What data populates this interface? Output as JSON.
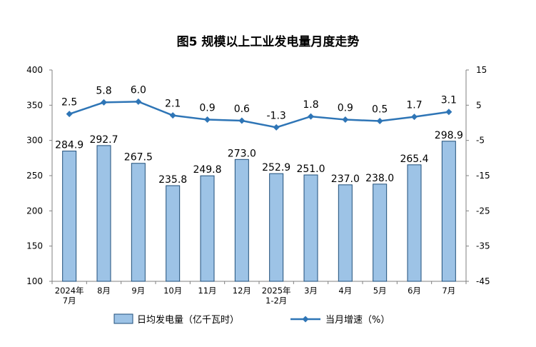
{
  "chart_data": {
    "type": "bar",
    "title": "图5  规模以上工业发电量月度走势",
    "categories": [
      "2024年\n7月",
      "8月",
      "9月",
      "10月",
      "11月",
      "12月",
      "2025年\n1-2月",
      "3月",
      "4月",
      "5月",
      "6月",
      "7月"
    ],
    "series": [
      {
        "name": "日均发电量（亿千瓦时）",
        "type": "bar",
        "axis": "left",
        "values": [
          284.9,
          292.7,
          267.5,
          235.8,
          249.8,
          273.0,
          252.9,
          251.0,
          237.0,
          238.0,
          265.4,
          298.9
        ],
        "labels": [
          "284.9",
          "292.7",
          "267.5",
          "235.8",
          "249.8",
          "273.0",
          "252.9",
          "251.0",
          "237.0",
          "238.0",
          "265.4",
          "298.9"
        ]
      },
      {
        "name": "当月增速（%）",
        "type": "line",
        "axis": "right",
        "values": [
          2.5,
          5.8,
          6.0,
          2.1,
          0.9,
          0.6,
          -1.3,
          1.8,
          0.9,
          0.5,
          1.7,
          3.1
        ],
        "labels": [
          "2.5",
          "5.8",
          "6.0",
          "2.1",
          "0.9",
          "0.6",
          "-1.3",
          "1.8",
          "0.9",
          "0.5",
          "1.7",
          "3.1"
        ]
      }
    ],
    "y_left": {
      "min": 100,
      "max": 400,
      "ticks": [
        100,
        150,
        200,
        250,
        300,
        350,
        400
      ]
    },
    "y_right": {
      "min": -45,
      "max": 15,
      "ticks": [
        -45,
        -35,
        -25,
        -15,
        -5,
        5,
        15
      ]
    },
    "colors": {
      "bar_fill": "#9dc3e6",
      "bar_stroke": "#1f4e79",
      "line": "#2e75b6",
      "axis": "#808080"
    },
    "legend": "bottom",
    "grid": false
  }
}
